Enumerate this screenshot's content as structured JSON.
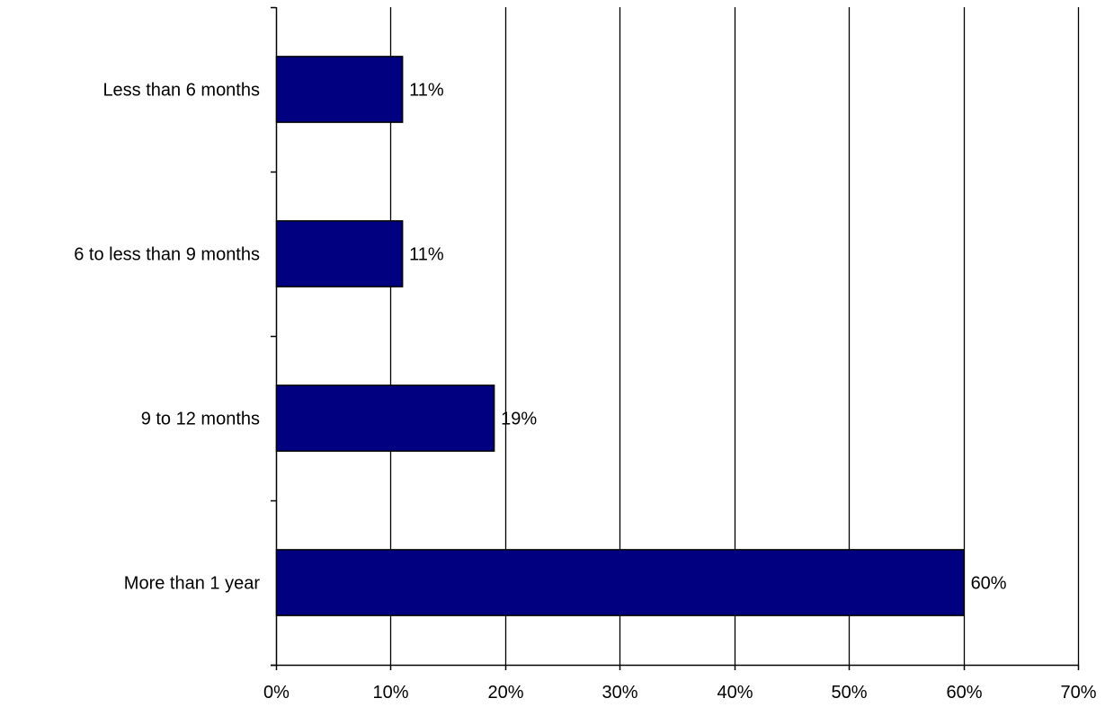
{
  "chart_data": {
    "type": "bar",
    "orientation": "horizontal",
    "categories": [
      "Less than 6 months",
      "6 to less than 9 months",
      "9 to 12 months",
      "More than 1 year"
    ],
    "values": [
      11,
      11,
      19,
      60
    ],
    "data_labels": [
      "11%",
      "11%",
      "19%",
      "60%"
    ],
    "xlim": [
      0,
      70
    ],
    "x_ticks": [
      0,
      10,
      20,
      30,
      40,
      50,
      60,
      70
    ],
    "x_tick_labels": [
      "0%",
      "10%",
      "20%",
      "30%",
      "40%",
      "50%",
      "60%",
      "70%"
    ],
    "title": "",
    "xlabel": "",
    "ylabel": "",
    "grid": "vertical",
    "legend": "none",
    "colors": {
      "bar_fill": "#000080",
      "bar_stroke": "#000000",
      "axis": "#000000",
      "grid": "#000000",
      "text": "#000000"
    }
  }
}
